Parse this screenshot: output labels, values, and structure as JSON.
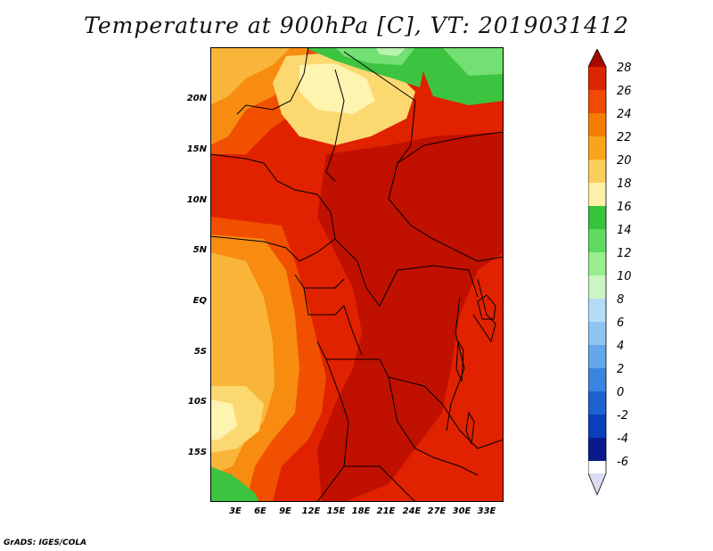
{
  "title": "Temperature at 900hPa [C], VT: 2019031412",
  "credit": "GrADS: IGES/COLA",
  "lat_labels": [
    "20N",
    "15N",
    "10N",
    "5N",
    "EQ",
    "5S",
    "10S",
    "15S"
  ],
  "lon_labels": [
    "3E",
    "6E",
    "9E",
    "12E",
    "15E",
    "18E",
    "21E",
    "24E",
    "27E",
    "30E",
    "33E"
  ],
  "colorbar": {
    "levels": [
      "28",
      "26",
      "24",
      "22",
      "20",
      "18",
      "16",
      "14",
      "12",
      "10",
      "8",
      "6",
      "4",
      "2",
      "0",
      "-2",
      "-4",
      "-6"
    ],
    "colors": [
      "#a50a00",
      "#d92500",
      "#f04a00",
      "#f47d00",
      "#f9a41c",
      "#fbce5c",
      "#fef0a8",
      "#37c43a",
      "#5fdc5f",
      "#98ee8f",
      "#c9f6c3",
      "#b4dcf8",
      "#8ec4f2",
      "#63a6ea",
      "#3a84e0",
      "#1d62cf",
      "#0b3ebb",
      "#0a1a8c",
      "#dadaf2"
    ]
  },
  "field_colors": {
    "c28": "#c01000",
    "c26": "#e02200",
    "c24": "#f05000",
    "c22": "#f78c10",
    "c20": "#f9b53a",
    "c18": "#fcd870",
    "c16": "#fff3b0",
    "c14": "#3cc440",
    "c12": "#72e072",
    "c10": "#b8f4b0"
  }
}
